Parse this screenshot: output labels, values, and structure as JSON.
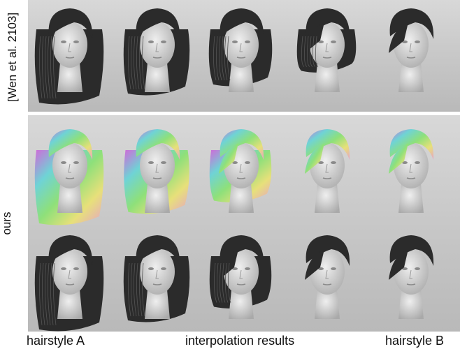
{
  "row_labels": {
    "top": "[Wen et al. 2103]",
    "bottom": "ours"
  },
  "captions": {
    "left": "hairstyle A",
    "center": "interpolation results",
    "right": "hairstyle B"
  },
  "figure": {
    "columns": 5,
    "rows": [
      {
        "name": "wen-et-al-row",
        "style": "dark-hair",
        "hair_length": [
          1.0,
          0.8,
          0.6,
          0.3,
          0.1
        ]
      },
      {
        "name": "ours-color-row",
        "style": "color-hair",
        "hair_length": [
          1.0,
          0.75,
          0.5,
          0.2,
          0.1
        ]
      },
      {
        "name": "ours-dark-row",
        "style": "dark-hair",
        "hair_length": [
          1.0,
          0.8,
          0.5,
          0.2,
          0.1
        ]
      }
    ],
    "colors": {
      "dark_hair": "#2b2b2b",
      "face": "#d9d9d9",
      "background": "#c8c8c8"
    }
  }
}
